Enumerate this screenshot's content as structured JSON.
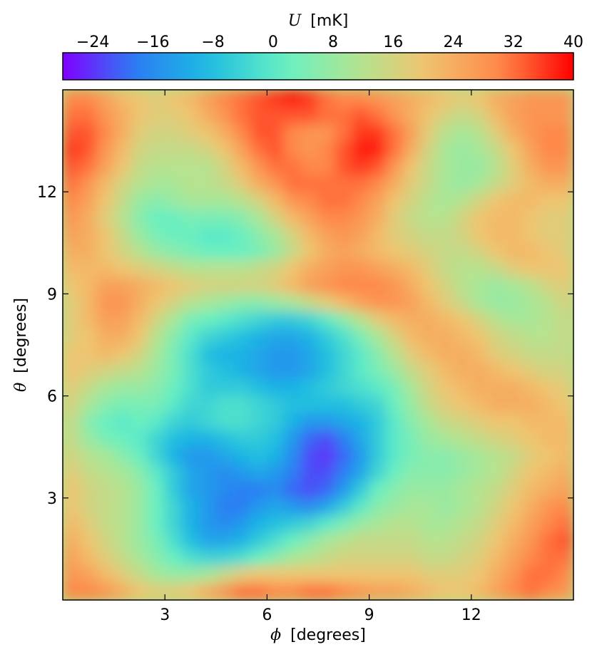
{
  "chart_data": {
    "type": "heatmap",
    "colormap": "rainbow",
    "colorbar": {
      "label_symbol": "U",
      "label_unit": "[mK]",
      "range": [
        -28,
        40
      ],
      "ticks": [
        -24,
        -16,
        -8,
        0,
        8,
        16,
        24,
        32,
        40
      ],
      "tick_labels": [
        "−24",
        "−16",
        "−8",
        "0",
        "8",
        "16",
        "24",
        "32",
        "40"
      ],
      "placement": "top"
    },
    "xlabel_symbol": "ϕ",
    "xlabel_unit": "[degrees]",
    "ylabel_symbol": "θ",
    "ylabel_unit": "[degrees]",
    "xlim": [
      0,
      15
    ],
    "ylim": [
      0,
      15
    ],
    "xticks": [
      3,
      6,
      9,
      12
    ],
    "yticks": [
      3,
      6,
      9,
      12
    ],
    "grid": false,
    "grid_spacing_deg": 0.5,
    "ncols": 30,
    "nrows": 30,
    "values_mK": [
      [
        30,
        30,
        28,
        24,
        20,
        18,
        18,
        20,
        24,
        28,
        32,
        32,
        30,
        30,
        32,
        32,
        30,
        28,
        26,
        26,
        24,
        22,
        20,
        20,
        22,
        26,
        30,
        32,
        30,
        28
      ],
      [
        28,
        26,
        22,
        18,
        14,
        10,
        8,
        8,
        10,
        14,
        18,
        20,
        20,
        20,
        20,
        20,
        20,
        20,
        20,
        20,
        20,
        18,
        18,
        18,
        20,
        24,
        28,
        32,
        32,
        30
      ],
      [
        26,
        22,
        18,
        14,
        10,
        6,
        2,
        -2,
        -4,
        -4,
        -2,
        2,
        6,
        10,
        12,
        14,
        16,
        16,
        16,
        16,
        16,
        14,
        14,
        16,
        18,
        22,
        26,
        30,
        32,
        32
      ],
      [
        24,
        20,
        16,
        12,
        8,
        4,
        -2,
        -8,
        -12,
        -12,
        -10,
        -6,
        -2,
        2,
        6,
        10,
        12,
        14,
        14,
        14,
        14,
        12,
        12,
        14,
        16,
        20,
        24,
        28,
        32,
        34
      ],
      [
        22,
        18,
        14,
        12,
        8,
        2,
        -4,
        -10,
        -14,
        -16,
        -14,
        -10,
        -8,
        -6,
        -4,
        0,
        4,
        8,
        10,
        12,
        12,
        10,
        10,
        12,
        14,
        18,
        22,
        26,
        30,
        32
      ],
      [
        20,
        16,
        14,
        12,
        8,
        2,
        -4,
        -10,
        -14,
        -18,
        -18,
        -14,
        -12,
        -14,
        -16,
        -12,
        -6,
        0,
        6,
        8,
        10,
        10,
        8,
        10,
        12,
        16,
        20,
        24,
        28,
        30
      ],
      [
        20,
        16,
        14,
        12,
        8,
        2,
        -6,
        -12,
        -14,
        -16,
        -18,
        -18,
        -16,
        -20,
        -22,
        -20,
        -14,
        -6,
        2,
        6,
        8,
        8,
        8,
        10,
        12,
        14,
        18,
        22,
        24,
        26
      ],
      [
        18,
        14,
        12,
        10,
        6,
        0,
        -6,
        -12,
        -14,
        -16,
        -14,
        -12,
        -14,
        -18,
        -22,
        -22,
        -18,
        -12,
        -4,
        2,
        6,
        6,
        6,
        8,
        10,
        12,
        16,
        20,
        22,
        24
      ],
      [
        16,
        12,
        10,
        6,
        2,
        -4,
        -10,
        -14,
        -14,
        -12,
        -10,
        -8,
        -10,
        -16,
        -22,
        -24,
        -20,
        -14,
        -6,
        0,
        4,
        6,
        6,
        8,
        10,
        12,
        14,
        18,
        20,
        22
      ],
      [
        14,
        8,
        4,
        2,
        0,
        -4,
        -8,
        -10,
        -10,
        -8,
        -6,
        -6,
        -8,
        -14,
        -20,
        -22,
        -18,
        -12,
        -6,
        0,
        4,
        8,
        10,
        12,
        14,
        16,
        18,
        20,
        22,
        22
      ],
      [
        14,
        6,
        2,
        0,
        2,
        0,
        -4,
        -6,
        -4,
        -2,
        -2,
        -4,
        -6,
        -10,
        -14,
        -14,
        -12,
        -10,
        -6,
        0,
        6,
        10,
        14,
        16,
        18,
        20,
        20,
        22,
        22,
        22
      ],
      [
        16,
        10,
        6,
        4,
        4,
        4,
        0,
        -4,
        -4,
        -2,
        -2,
        -4,
        -6,
        -8,
        -8,
        -8,
        -8,
        -6,
        -4,
        2,
        8,
        14,
        18,
        20,
        22,
        24,
        24,
        24,
        22,
        20
      ],
      [
        18,
        14,
        10,
        8,
        8,
        6,
        2,
        -2,
        -6,
        -6,
        -6,
        -8,
        -10,
        -10,
        -8,
        -6,
        -4,
        -2,
        0,
        4,
        10,
        16,
        20,
        22,
        24,
        24,
        24,
        22,
        20,
        18
      ],
      [
        20,
        18,
        16,
        14,
        12,
        8,
        4,
        -2,
        -6,
        -8,
        -10,
        -12,
        -14,
        -14,
        -12,
        -8,
        -4,
        0,
        4,
        8,
        14,
        18,
        22,
        24,
        24,
        22,
        20,
        18,
        16,
        16
      ],
      [
        20,
        20,
        22,
        20,
        16,
        10,
        4,
        -2,
        -8,
        -10,
        -10,
        -12,
        -14,
        -14,
        -12,
        -8,
        -4,
        0,
        6,
        12,
        18,
        22,
        24,
        24,
        22,
        18,
        16,
        14,
        14,
        14
      ],
      [
        18,
        20,
        24,
        24,
        20,
        12,
        6,
        0,
        -4,
        -6,
        -8,
        -10,
        -12,
        -12,
        -10,
        -6,
        -2,
        4,
        10,
        16,
        22,
        24,
        24,
        22,
        20,
        16,
        14,
        12,
        12,
        14
      ],
      [
        18,
        22,
        26,
        26,
        22,
        16,
        10,
        4,
        2,
        0,
        -2,
        -4,
        -6,
        -6,
        -4,
        0,
        6,
        12,
        18,
        22,
        24,
        24,
        22,
        20,
        16,
        12,
        10,
        10,
        12,
        14
      ],
      [
        18,
        22,
        28,
        28,
        24,
        20,
        16,
        12,
        10,
        8,
        6,
        6,
        8,
        10,
        14,
        18,
        22,
        26,
        28,
        28,
        26,
        22,
        18,
        14,
        10,
        8,
        8,
        10,
        12,
        16
      ],
      [
        20,
        22,
        26,
        26,
        24,
        22,
        20,
        18,
        16,
        16,
        16,
        16,
        18,
        22,
        26,
        28,
        30,
        30,
        30,
        28,
        24,
        20,
        16,
        12,
        10,
        8,
        10,
        12,
        16,
        18
      ],
      [
        22,
        22,
        22,
        20,
        18,
        16,
        14,
        12,
        12,
        12,
        12,
        14,
        16,
        20,
        24,
        26,
        28,
        28,
        26,
        24,
        22,
        18,
        14,
        12,
        12,
        14,
        18,
        20,
        20,
        20
      ],
      [
        24,
        24,
        20,
        16,
        12,
        8,
        6,
        4,
        2,
        2,
        2,
        4,
        8,
        14,
        20,
        24,
        26,
        24,
        22,
        20,
        18,
        16,
        14,
        14,
        16,
        20,
        22,
        22,
        20,
        18
      ],
      [
        26,
        24,
        20,
        14,
        8,
        4,
        2,
        2,
        0,
        0,
        2,
        6,
        10,
        16,
        22,
        26,
        28,
        26,
        22,
        18,
        16,
        14,
        14,
        16,
        20,
        22,
        22,
        20,
        18,
        18
      ],
      [
        28,
        24,
        18,
        12,
        6,
        2,
        2,
        4,
        4,
        4,
        6,
        10,
        16,
        22,
        26,
        30,
        30,
        28,
        24,
        18,
        14,
        12,
        12,
        16,
        20,
        22,
        22,
        20,
        18,
        18
      ],
      [
        30,
        26,
        20,
        14,
        8,
        6,
        8,
        10,
        10,
        10,
        12,
        16,
        22,
        28,
        30,
        32,
        32,
        30,
        26,
        20,
        16,
        12,
        10,
        12,
        16,
        20,
        22,
        22,
        20,
        20
      ],
      [
        32,
        28,
        22,
        16,
        12,
        10,
        10,
        12,
        12,
        14,
        18,
        24,
        28,
        32,
        32,
        32,
        32,
        32,
        30,
        24,
        18,
        14,
        10,
        8,
        10,
        14,
        18,
        22,
        24,
        24
      ],
      [
        34,
        32,
        26,
        20,
        14,
        12,
        12,
        12,
        12,
        16,
        22,
        28,
        32,
        32,
        30,
        30,
        34,
        36,
        34,
        28,
        20,
        14,
        10,
        8,
        8,
        12,
        18,
        24,
        28,
        28
      ],
      [
        36,
        34,
        28,
        22,
        16,
        14,
        14,
        14,
        16,
        20,
        26,
        32,
        34,
        30,
        28,
        30,
        34,
        38,
        38,
        32,
        24,
        16,
        10,
        8,
        10,
        14,
        20,
        26,
        30,
        30
      ],
      [
        34,
        34,
        30,
        24,
        18,
        16,
        16,
        18,
        20,
        24,
        30,
        34,
        34,
        30,
        28,
        28,
        32,
        36,
        36,
        32,
        26,
        18,
        12,
        10,
        12,
        18,
        24,
        28,
        30,
        30
      ],
      [
        32,
        32,
        28,
        24,
        20,
        18,
        18,
        20,
        24,
        28,
        32,
        34,
        34,
        34,
        34,
        32,
        32,
        34,
        32,
        28,
        24,
        20,
        16,
        14,
        16,
        22,
        26,
        28,
        28,
        28
      ],
      [
        30,
        30,
        26,
        22,
        20,
        18,
        20,
        22,
        26,
        30,
        32,
        34,
        36,
        38,
        36,
        32,
        30,
        30,
        28,
        26,
        24,
        22,
        20,
        18,
        20,
        24,
        26,
        28,
        28,
        28
      ]
    ]
  }
}
